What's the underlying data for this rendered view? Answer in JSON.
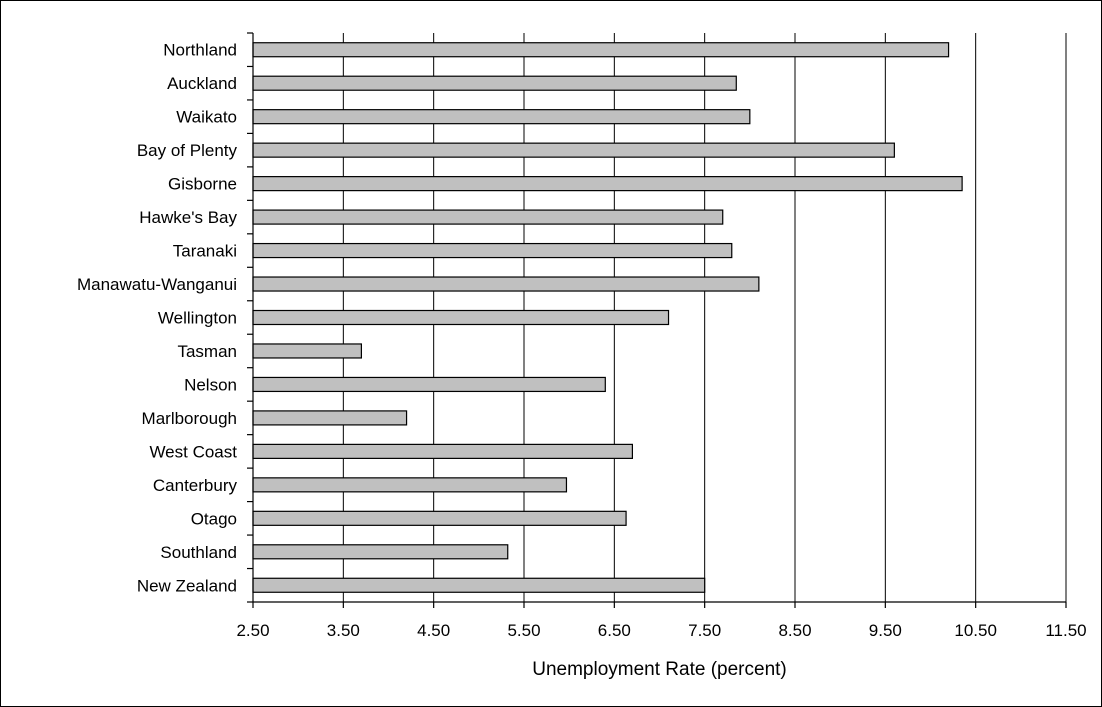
{
  "chart_data": {
    "type": "bar",
    "orientation": "horizontal",
    "title": "",
    "xlabel": "Unemployment Rate (percent)",
    "ylabel": "",
    "categories": [
      "Northland",
      "Auckland",
      "Waikato",
      "Bay of Plenty",
      "Gisborne",
      "Hawke's Bay",
      "Taranaki",
      "Manawatu-Wanganui",
      "Wellington",
      "Tasman",
      "Nelson",
      "Marlborough",
      "West Coast",
      "Canterbury",
      "Otago",
      "Southland",
      "New Zealand"
    ],
    "values": [
      10.2,
      7.85,
      8.0,
      9.6,
      10.35,
      7.7,
      7.8,
      8.1,
      7.1,
      3.7,
      6.4,
      4.2,
      6.7,
      5.97,
      6.63,
      5.32,
      7.5
    ],
    "xlim": [
      2.5,
      11.5
    ],
    "x_ticks": [
      "2.50",
      "3.50",
      "4.50",
      "5.50",
      "6.50",
      "7.50",
      "8.50",
      "9.50",
      "10.50",
      "11.50"
    ],
    "grid": "vertical",
    "legend": "none",
    "colors": {
      "bar_fill": "#c0c0c0",
      "bar_stroke": "#000000",
      "grid": "#000000"
    }
  }
}
